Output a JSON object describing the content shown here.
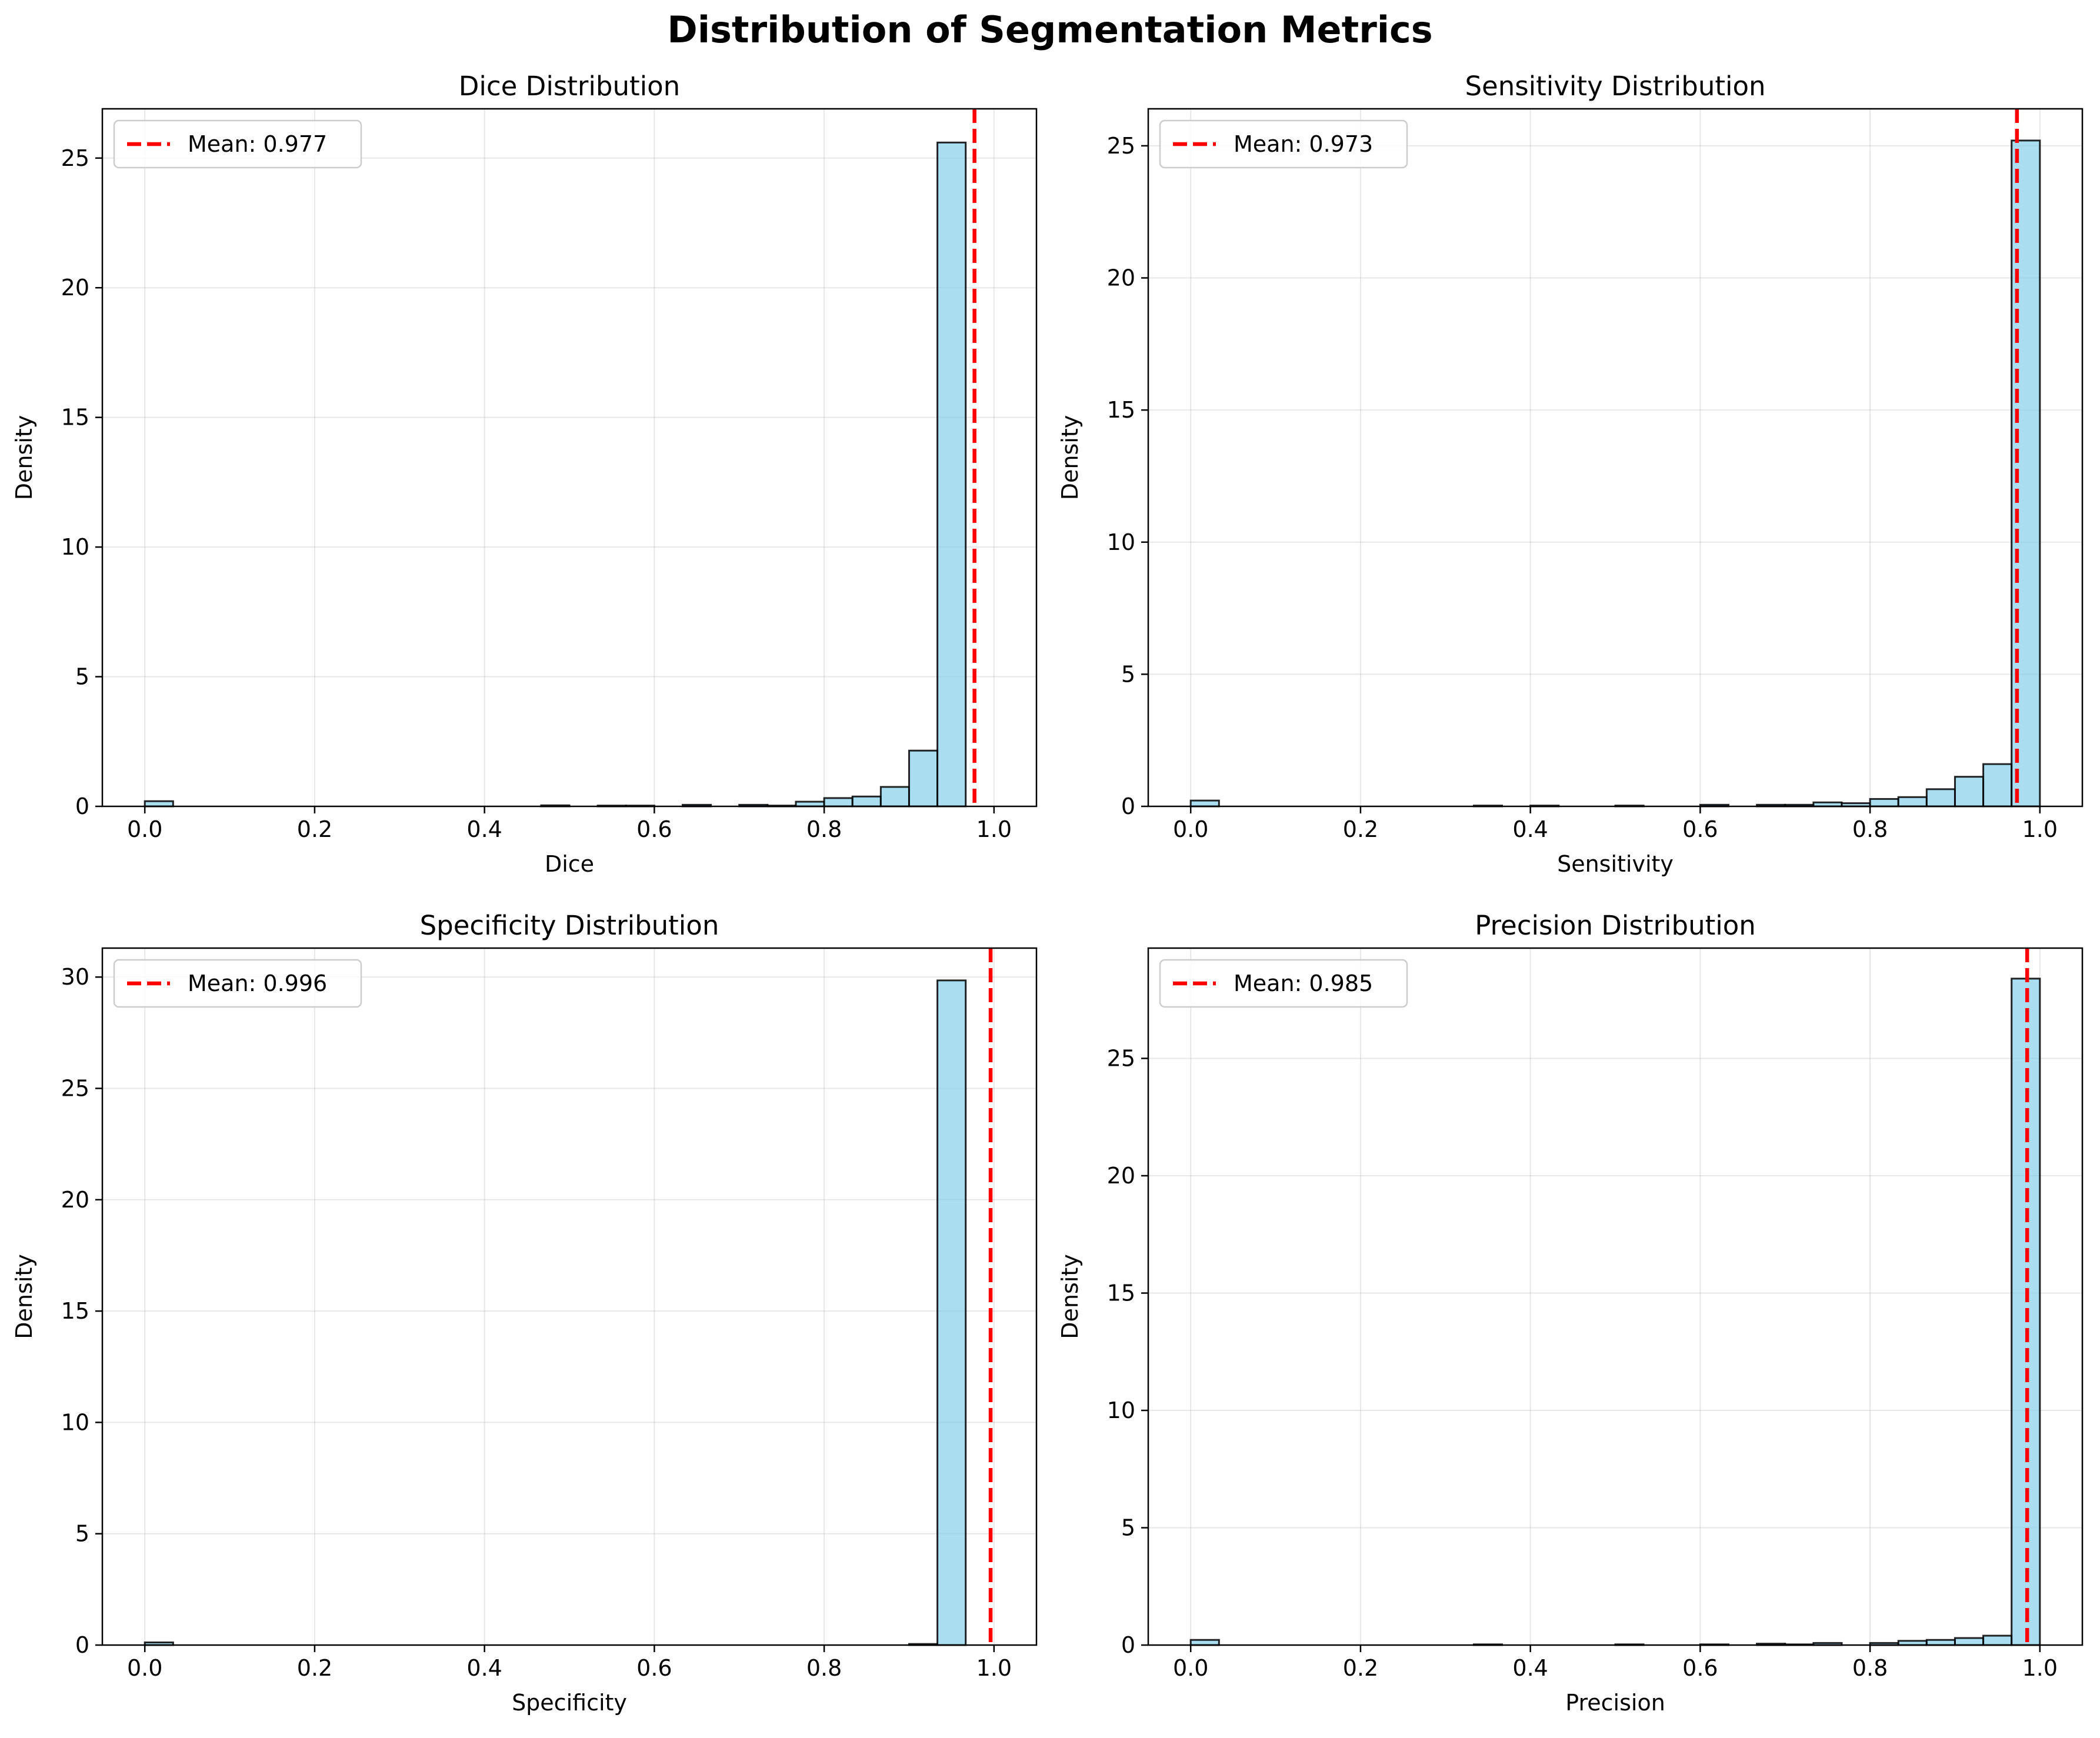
{
  "title": "Distribution of Segmentation Metrics",
  "colors": {
    "bar_fill": "#87ceeb",
    "bar_edge": "#000000",
    "mean_line": "#ff0000",
    "grid": "#b0b0b0"
  },
  "chart_data": [
    {
      "type": "bar",
      "title": "Dice Distribution",
      "xlabel": "Dice",
      "ylabel": "Density",
      "xlim": [
        -0.05,
        1.05
      ],
      "ylim": [
        0,
        26.9
      ],
      "xticks": [
        0.0,
        0.2,
        0.4,
        0.6,
        0.8,
        1.0
      ],
      "xtick_labels": [
        "0.0",
        "0.2",
        "0.4",
        "0.6",
        "0.8",
        "1.0"
      ],
      "yticks": [
        0,
        5,
        10,
        15,
        20,
        25
      ],
      "ytick_labels": [
        "0",
        "5",
        "10",
        "15",
        "20",
        "25"
      ],
      "grid": true,
      "legend_position": "upper-left",
      "bins": 30,
      "bin_range": [
        0,
        1
      ],
      "values": [
        0.2,
        0,
        0,
        0,
        0,
        0,
        0,
        0,
        0,
        0,
        0,
        0,
        0,
        0,
        0.04,
        0,
        0.03,
        0.03,
        0,
        0.06,
        0,
        0.06,
        0.03,
        0.18,
        0.32,
        0.38,
        0.75,
        2.15,
        25.6,
        0
      ],
      "mean": 0.977,
      "mean_label": "Mean: 0.977"
    },
    {
      "type": "bar",
      "title": "Sensitivity Distribution",
      "xlabel": "Sensitivity",
      "ylabel": "Density",
      "xlim": [
        -0.05,
        1.05
      ],
      "ylim": [
        0,
        26.4
      ],
      "xticks": [
        0.0,
        0.2,
        0.4,
        0.6,
        0.8,
        1.0
      ],
      "xtick_labels": [
        "0.0",
        "0.2",
        "0.4",
        "0.6",
        "0.8",
        "1.0"
      ],
      "yticks": [
        0,
        5,
        10,
        15,
        20,
        25
      ],
      "ytick_labels": [
        "0",
        "5",
        "10",
        "15",
        "20",
        "25"
      ],
      "grid": true,
      "legend_position": "upper-left",
      "bins": 30,
      "bin_range": [
        0,
        1
      ],
      "values": [
        0.22,
        0,
        0,
        0,
        0,
        0,
        0,
        0,
        0,
        0,
        0.03,
        0,
        0.03,
        0,
        0,
        0.03,
        0,
        0,
        0.06,
        0,
        0.06,
        0.06,
        0.15,
        0.12,
        0.28,
        0.35,
        0.65,
        1.12,
        1.6,
        25.2
      ],
      "mean": 0.973,
      "mean_label": "Mean: 0.973"
    },
    {
      "type": "bar",
      "title": "Specificity Distribution",
      "xlabel": "Specificity",
      "ylabel": "Density",
      "xlim": [
        -0.05,
        1.05
      ],
      "ylim": [
        0,
        31.3
      ],
      "xticks": [
        0.0,
        0.2,
        0.4,
        0.6,
        0.8,
        1.0
      ],
      "xtick_labels": [
        "0.0",
        "0.2",
        "0.4",
        "0.6",
        "0.8",
        "1.0"
      ],
      "yticks": [
        0,
        5,
        10,
        15,
        20,
        25,
        30
      ],
      "ytick_labels": [
        "0",
        "5",
        "10",
        "15",
        "20",
        "25",
        "30"
      ],
      "grid": true,
      "legend_position": "upper-left",
      "bins": 30,
      "bin_range": [
        0,
        1
      ],
      "values": [
        0.12,
        0,
        0,
        0,
        0,
        0,
        0,
        0,
        0,
        0,
        0,
        0,
        0,
        0,
        0,
        0,
        0,
        0,
        0,
        0,
        0,
        0,
        0,
        0,
        0,
        0,
        0,
        0.05,
        29.85,
        0
      ],
      "mean": 0.996,
      "mean_label": "Mean: 0.996"
    },
    {
      "type": "bar",
      "title": "Precision Distribution",
      "xlabel": "Precision",
      "ylabel": "Density",
      "xlim": [
        -0.05,
        1.05
      ],
      "ylim": [
        0,
        29.7
      ],
      "xticks": [
        0.0,
        0.2,
        0.4,
        0.6,
        0.8,
        1.0
      ],
      "xtick_labels": [
        "0.0",
        "0.2",
        "0.4",
        "0.6",
        "0.8",
        "1.0"
      ],
      "yticks": [
        0,
        5,
        10,
        15,
        20,
        25
      ],
      "ytick_labels": [
        "0",
        "5",
        "10",
        "15",
        "20",
        "25"
      ],
      "grid": true,
      "legend_position": "upper-left",
      "bins": 30,
      "bin_range": [
        0,
        1
      ],
      "values": [
        0.22,
        0,
        0,
        0,
        0,
        0,
        0,
        0,
        0,
        0,
        0.03,
        0,
        0,
        0,
        0,
        0.03,
        0,
        0,
        0.03,
        0,
        0.06,
        0.03,
        0.09,
        0,
        0.09,
        0.18,
        0.22,
        0.3,
        0.4,
        28.4
      ],
      "mean": 0.985,
      "mean_label": "Mean: 0.985"
    }
  ]
}
